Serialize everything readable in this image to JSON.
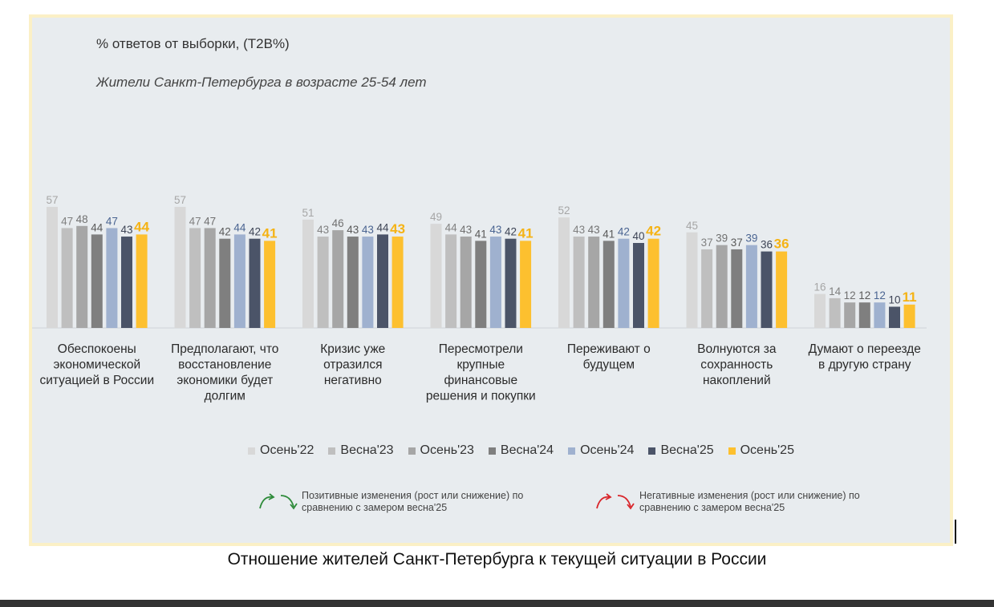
{
  "subtitle": "% ответов от выборки, (T2B%)",
  "group_label": "Жители Санкт-Петербурга в возрасте 25-54 лет",
  "caption": "Отношение жителей Санкт-Петербурга к текущей ситуации в России",
  "notes": {
    "positive": "Позитивные изменения (рост или снижение) по сравнению с замером весна'25",
    "negative": "Негативные изменения (рост или снижение) по сравнению с замером весна'25"
  },
  "colors": {
    "positive_arrow": "#2e8b3a",
    "negative_arrow": "#d9262b"
  },
  "chart_data": {
    "type": "bar",
    "ylim": [
      0,
      60
    ],
    "categories": [
      "Обеспокоены экономической ситуацией в России",
      "Предполагают, что восстановление экономики будет долгим",
      "Кризис уже отразился негативно",
      "Пересмотрели крупные финансовые решения и покупки",
      "Переживают о будущем",
      "Волнуются за сохранность накоплений",
      "Думают о переезде в другую страну"
    ],
    "category_lines": [
      [
        "Обеспокоены",
        "экономической",
        "ситуацией в России"
      ],
      [
        "Предполагают, что",
        "восстановление",
        "экономики будет",
        "долгим"
      ],
      [
        "Кризис уже",
        "отразился",
        "негативно"
      ],
      [
        "Пересмотрели",
        "крупные",
        "финансовые",
        "решения и покупки"
      ],
      [
        "Переживают о",
        "будущем"
      ],
      [
        "Волнуются за",
        "сохранность",
        "накоплений"
      ],
      [
        "Думают о переезде",
        "в другую страну"
      ]
    ],
    "series": [
      {
        "name": "Осень'22",
        "color": "#d8d8d8",
        "label_color": "#a6a6a6",
        "values": [
          57,
          57,
          51,
          49,
          52,
          45,
          16
        ]
      },
      {
        "name": "Весна'23",
        "color": "#bfbfbf",
        "label_color": "#808080",
        "values": [
          47,
          47,
          43,
          44,
          43,
          37,
          14
        ]
      },
      {
        "name": "Осень'23",
        "color": "#a6a6a6",
        "label_color": "#707070",
        "values": [
          48,
          47,
          46,
          43,
          43,
          39,
          12
        ]
      },
      {
        "name": "Весна'24",
        "color": "#7f7f7f",
        "label_color": "#595959",
        "values": [
          44,
          42,
          43,
          41,
          41,
          37,
          12
        ]
      },
      {
        "name": "Осень'24",
        "color": "#9fb1cf",
        "label_color": "#4a6491",
        "values": [
          47,
          44,
          43,
          43,
          42,
          39,
          12
        ]
      },
      {
        "name": "Весна'25",
        "color": "#4b5468",
        "label_color": "#3d4455",
        "values": [
          43,
          42,
          44,
          42,
          40,
          36,
          10
        ]
      },
      {
        "name": "Осень'25",
        "color": "#fdc02f",
        "label_color": "#f5b315",
        "values": [
          44,
          41,
          43,
          41,
          42,
          36,
          11
        ]
      }
    ]
  }
}
